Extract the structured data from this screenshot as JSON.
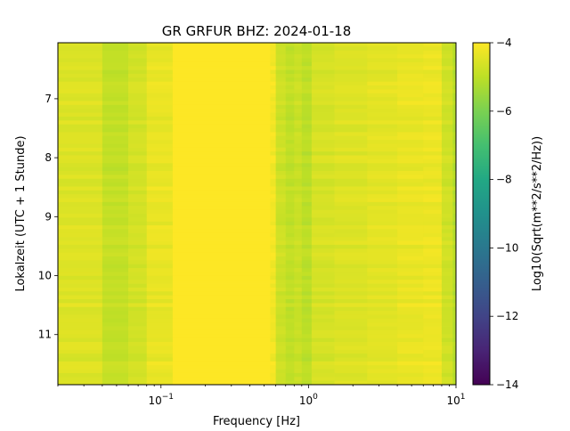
{
  "chart_data": {
    "type": "heatmap",
    "title": "GR GRFUR  BHZ: 2024-01-18",
    "xlabel": "Frequency [Hz]",
    "ylabel": "Lokalzeit (UTC + 1 Stunde)",
    "xscale": "log",
    "xlim": [
      0.02,
      10
    ],
    "ylim": [
      11.85,
      6.05
    ],
    "xticks": [
      {
        "value": 0.1,
        "base": "10",
        "exp": "−1"
      },
      {
        "value": 1,
        "base": "10",
        "exp": "0"
      },
      {
        "value": 10,
        "base": "10",
        "exp": "1"
      }
    ],
    "yticks": [
      {
        "value": 7,
        "label": "7"
      },
      {
        "value": 8,
        "label": "8"
      },
      {
        "value": 9,
        "label": "9"
      },
      {
        "value": 10,
        "label": "10"
      },
      {
        "value": 11,
        "label": "11"
      }
    ],
    "colorbar": {
      "label": "Log10(Sqrt(m**2/s**2/Hz))",
      "colormap": "viridis",
      "range": [
        -14,
        -4
      ],
      "ticks": [
        {
          "value": -4,
          "label": "−4"
        },
        {
          "value": -6,
          "label": "−6"
        },
        {
          "value": -8,
          "label": "−8"
        },
        {
          "value": -10,
          "label": "−10"
        },
        {
          "value": -12,
          "label": "−12"
        },
        {
          "value": -14,
          "label": "−14"
        }
      ]
    },
    "frequency_bands_hz": [
      0.02,
      0.04,
      0.06,
      0.08,
      0.12,
      0.55,
      0.6,
      0.7,
      0.8,
      0.9,
      1.05,
      1.5,
      2.5,
      4,
      6,
      8,
      9.5,
      10
    ],
    "band_level": [
      -4.5,
      -4.9,
      -4.65,
      -4.3,
      -4.0,
      -4.15,
      -4.75,
      -4.95,
      -4.8,
      -5.0,
      -4.6,
      -4.5,
      -4.4,
      -4.3,
      -4.25,
      -4.7,
      -5.1
    ],
    "time_range_hours": [
      6.05,
      11.85
    ],
    "time_steps": 88,
    "grid": false
  }
}
